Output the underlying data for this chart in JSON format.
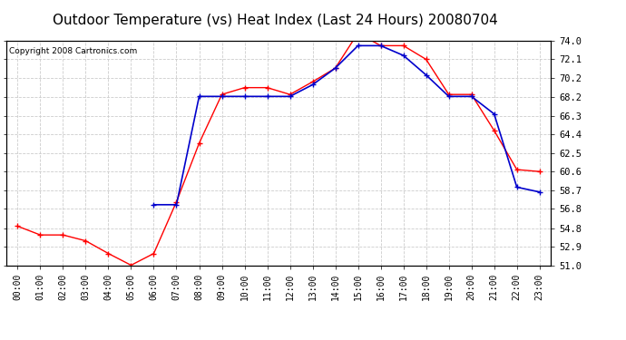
{
  "title": "Outdoor Temperature (vs) Heat Index (Last 24 Hours) 20080704",
  "copyright": "Copyright 2008 Cartronics.com",
  "hours": [
    "00:00",
    "01:00",
    "02:00",
    "03:00",
    "04:00",
    "05:00",
    "06:00",
    "07:00",
    "08:00",
    "09:00",
    "10:00",
    "11:00",
    "12:00",
    "13:00",
    "14:00",
    "15:00",
    "16:00",
    "17:00",
    "18:00",
    "19:00",
    "20:00",
    "21:00",
    "22:00",
    "23:00"
  ],
  "temp": [
    55.0,
    54.1,
    54.1,
    53.5,
    52.2,
    51.0,
    52.2,
    57.5,
    63.5,
    68.5,
    69.2,
    69.2,
    68.5,
    69.8,
    71.2,
    74.8,
    73.5,
    73.5,
    72.1,
    68.5,
    68.5,
    64.8,
    60.8,
    60.6
  ],
  "heat_index": [
    null,
    null,
    null,
    null,
    null,
    null,
    57.2,
    57.2,
    68.3,
    68.3,
    68.3,
    68.3,
    68.3,
    69.5,
    71.2,
    73.5,
    73.5,
    72.5,
    70.5,
    68.3,
    68.3,
    66.5,
    59.0,
    58.5
  ],
  "temp_color": "#ff0000",
  "heat_index_color": "#0000cc",
  "bg_color": "#ffffff",
  "plot_bg_color": "#ffffff",
  "grid_color": "#cccccc",
  "ylim_min": 51.0,
  "ylim_max": 74.0,
  "yticks": [
    51.0,
    52.9,
    54.8,
    56.8,
    58.7,
    60.6,
    62.5,
    64.4,
    66.3,
    68.2,
    70.2,
    72.1,
    74.0
  ],
  "title_fontsize": 11,
  "copyright_fontsize": 6.5
}
